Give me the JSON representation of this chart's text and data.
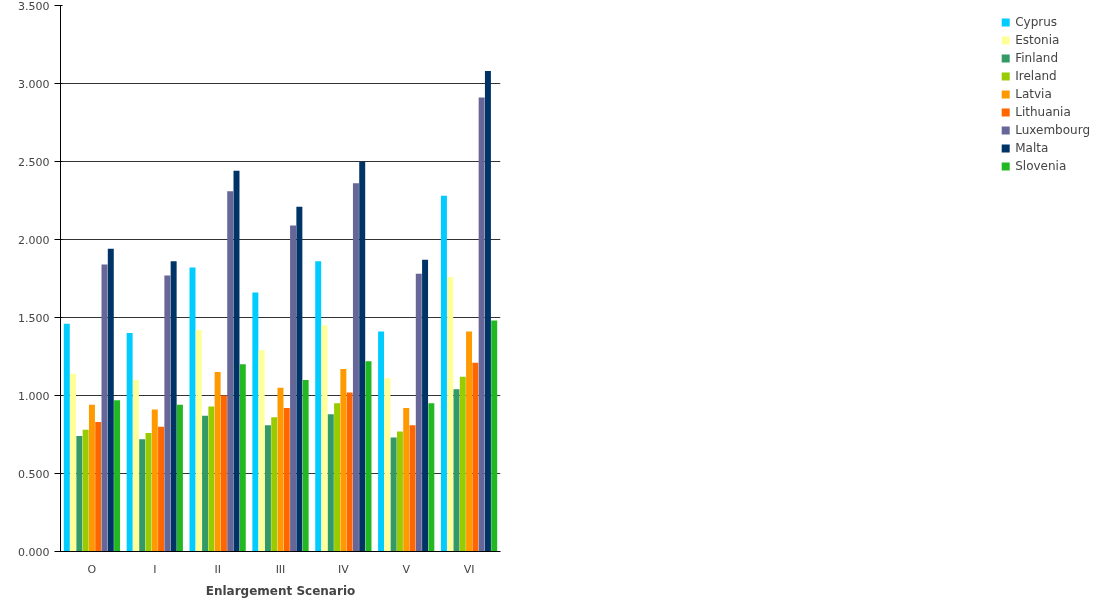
{
  "chart_data": {
    "type": "bar",
    "xlabel": "Enlargement Scenario",
    "categories": [
      "O",
      "I",
      "II",
      "III",
      "IV",
      "V",
      "VI"
    ],
    "series": [
      {
        "name": "Cyprus",
        "color": "#00ccff",
        "values": [
          1.46,
          1.4,
          1.82,
          1.66,
          1.86,
          1.41,
          2.28
        ]
      },
      {
        "name": "Estonia",
        "color": "#ffff99",
        "values": [
          1.14,
          1.1,
          1.42,
          1.29,
          1.45,
          1.11,
          1.76
        ]
      },
      {
        "name": "Finland",
        "color": "#339966",
        "values": [
          0.74,
          0.72,
          0.87,
          0.81,
          0.88,
          0.73,
          1.04
        ]
      },
      {
        "name": "Ireland",
        "color": "#99cc00",
        "values": [
          0.78,
          0.76,
          0.93,
          0.86,
          0.95,
          0.77,
          1.12
        ]
      },
      {
        "name": "Latvia",
        "color": "#ff9900",
        "values": [
          0.94,
          0.91,
          1.15,
          1.05,
          1.17,
          0.92,
          1.41
        ]
      },
      {
        "name": "Lithuania",
        "color": "#ff6600",
        "values": [
          0.83,
          0.8,
          1.0,
          0.92,
          1.02,
          0.81,
          1.21
        ]
      },
      {
        "name": "Luxembourg",
        "color": "#666699",
        "values": [
          1.84,
          1.77,
          2.31,
          2.09,
          2.36,
          1.78,
          2.91
        ]
      },
      {
        "name": "Malta",
        "color": "#003366",
        "values": [
          1.94,
          1.86,
          2.44,
          2.21,
          2.5,
          1.87,
          3.08
        ]
      },
      {
        "name": "Slovenia",
        "color": "#22b822",
        "values": [
          0.97,
          0.94,
          1.2,
          1.1,
          1.22,
          0.95,
          1.48
        ]
      }
    ],
    "ylim": [
      0,
      3.5
    ],
    "yticks": [
      {
        "value": 0,
        "label": "0.000"
      },
      {
        "value": 0.5,
        "label": "0.500"
      },
      {
        "value": 1,
        "label": "1.000"
      },
      {
        "value": 1.5,
        "label": "1.500"
      },
      {
        "value": 2,
        "label": "2.000"
      },
      {
        "value": 2.5,
        "label": "2.500"
      },
      {
        "value": 3,
        "label": "3.000"
      },
      {
        "value": 3.5,
        "label": "3.500"
      }
    ],
    "grid": "y",
    "legend": "right"
  }
}
